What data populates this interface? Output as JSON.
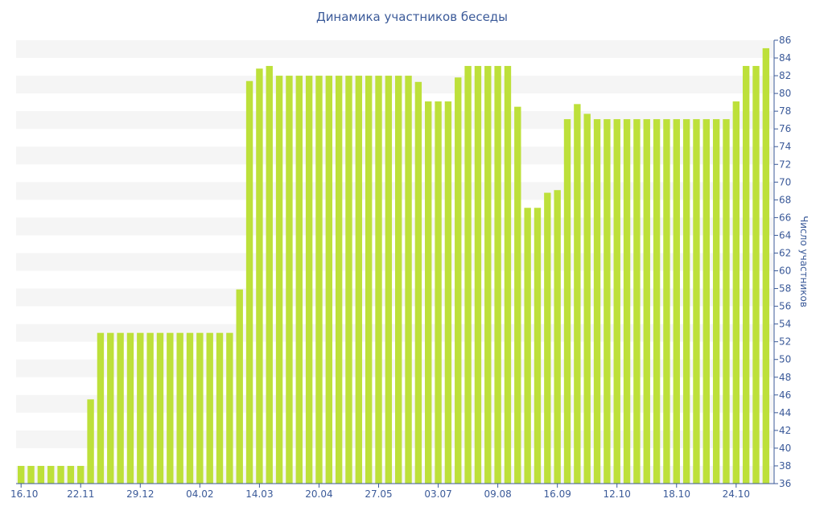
{
  "chart_data": {
    "type": "bar",
    "title": "Динамика участников беседы",
    "xlabel": "",
    "ylabel": "Число участников",
    "ylim": [
      36,
      86
    ],
    "y_ticks": [
      36,
      38,
      40,
      42,
      44,
      46,
      48,
      50,
      52,
      54,
      56,
      58,
      60,
      62,
      64,
      66,
      68,
      70,
      72,
      74,
      76,
      78,
      80,
      82,
      84,
      86
    ],
    "x_tick_labels": [
      "16.10",
      "22.11",
      "29.12",
      "04.02",
      "14.03",
      "20.04",
      "27.05",
      "03.07",
      "09.08",
      "16.09",
      "12.10",
      "18.10",
      "24.10"
    ],
    "x_tick_bar_index": [
      0,
      6,
      12,
      18,
      24,
      30,
      36,
      42,
      48,
      54,
      60,
      66,
      72
    ],
    "grid": "horizontal bands",
    "colors": {
      "bar": "#bde03a",
      "band": "#f5f5f5",
      "text": "#3b5a99"
    },
    "values": [
      38,
      38,
      38,
      38,
      38,
      38,
      38,
      45.5,
      53,
      53,
      53,
      53,
      53,
      53,
      53,
      53,
      53,
      53,
      53,
      53,
      53,
      53,
      57.9,
      81.4,
      82.8,
      83.1,
      82,
      82,
      82,
      82,
      82,
      82,
      82,
      82,
      82,
      82,
      82,
      82,
      82,
      82,
      81.3,
      79.1,
      79.1,
      79.1,
      81.8,
      83.1,
      83.1,
      83.1,
      83.1,
      83.1,
      78.5,
      67.1,
      67.1,
      68.8,
      69.1,
      77.1,
      78.8,
      77.7,
      77.1,
      77.1,
      77.1,
      77.1,
      77.1,
      77.1,
      77.1,
      77.1,
      77.1,
      77.1,
      77.1,
      77.1,
      77.1,
      77.1,
      79.1,
      83.1,
      83.1,
      85.1
    ]
  }
}
